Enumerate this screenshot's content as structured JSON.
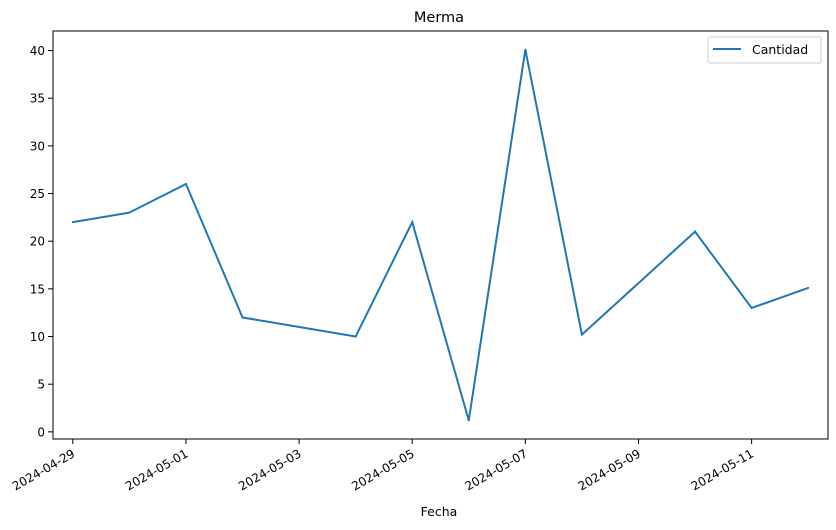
{
  "chart_data": {
    "type": "line",
    "title": "Merma",
    "xlabel": "Fecha",
    "ylabel": "",
    "x": [
      "2024-04-29",
      "2024-04-30",
      "2024-05-01",
      "2024-05-02",
      "2024-05-04",
      "2024-05-05",
      "2024-05-06",
      "2024-05-07",
      "2024-05-08",
      "2024-05-10",
      "2024-05-11",
      "2024-05-12"
    ],
    "series": [
      {
        "name": "Cantidad",
        "values": [
          22,
          23,
          26,
          12,
          10,
          22,
          1.2,
          40.1,
          10.2,
          21,
          13,
          15.1
        ]
      }
    ],
    "xticks": [
      "2024-04-29",
      "2024-05-01",
      "2024-05-03",
      "2024-05-05",
      "2024-05-07",
      "2024-05-09",
      "2024-05-11"
    ],
    "yticks": [
      0,
      5,
      10,
      15,
      20,
      25,
      30,
      35,
      40
    ],
    "xlim": [
      "2024-04-28T15:36",
      "2024-05-12T08:24"
    ],
    "ylim": [
      -0.75,
      42.05
    ],
    "grid": false,
    "legend": "top-right",
    "colors": {
      "series": "#1f77b4"
    }
  }
}
